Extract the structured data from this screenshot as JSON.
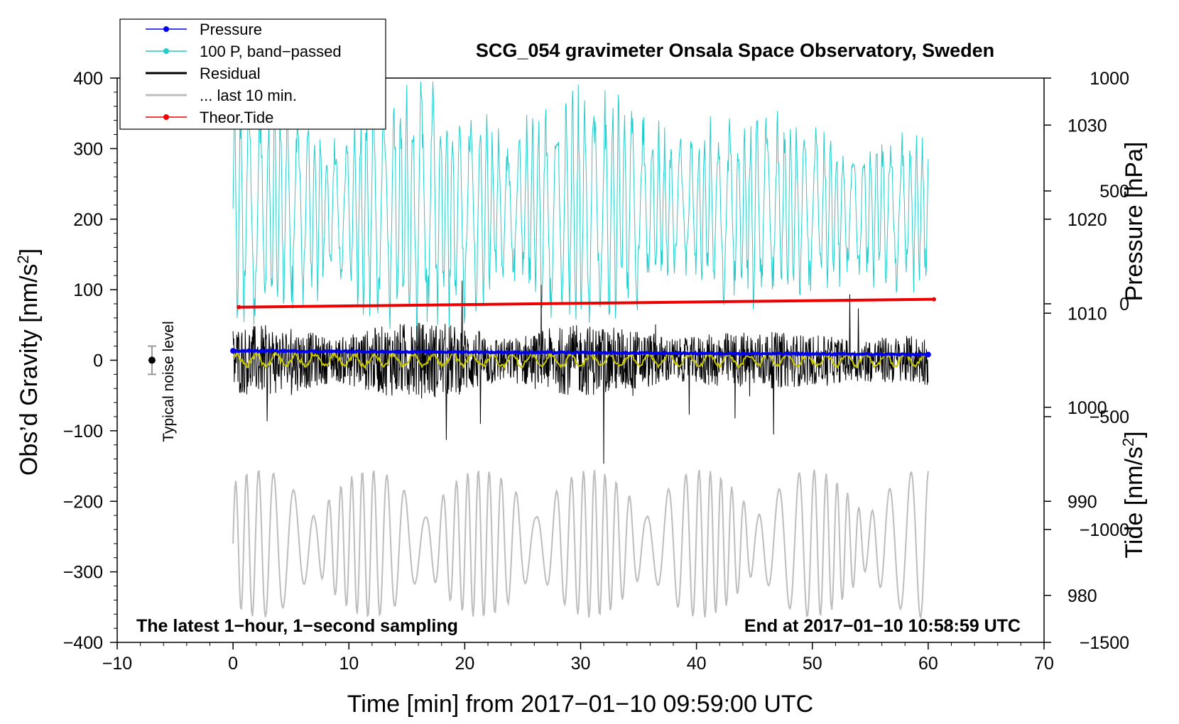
{
  "chart_data": {
    "type": "line",
    "title": "SCG_054 gravimeter Onsala Space Observatory, Sweden",
    "xlabel": "Time [min] from 2017−01−10 09:59:00 UTC",
    "ylabel_left_main": "Obs’d Gravity [nm/s",
    "ylabel_left_sup": "2",
    "ylabel_left_end": "]",
    "ylabel_right_pressure": "Pressure [hPa]",
    "ylabel_right_tide_main": "Tide [nm/s",
    "ylabel_right_tide_sup": "2",
    "ylabel_right_tide_end": "]",
    "xlim": [
      -10,
      70
    ],
    "ylim_gravity": [
      -400,
      400
    ],
    "ylim_pressure_axis": [
      975,
      1035
    ],
    "ylim_tide_axis": [
      -1500,
      1000
    ],
    "x_ticks": [
      -10,
      0,
      10,
      20,
      30,
      40,
      50,
      60,
      70
    ],
    "x_tick_labels": [
      "−10",
      "0",
      "10",
      "20",
      "30",
      "40",
      "50",
      "60",
      "70"
    ],
    "y_ticks_gravity": [
      400,
      300,
      200,
      100,
      0,
      -100,
      -200,
      -300,
      -400
    ],
    "y_tick_labels_gravity": [
      "400",
      "300",
      "200",
      "100",
      "0",
      "−100",
      "−200",
      "−300",
      "−400"
    ],
    "y_ticks_pressure": [
      1030,
      1020,
      1010,
      1000,
      990,
      980
    ],
    "y_tick_labels_pressure": [
      "1030",
      "1020",
      "1010",
      "1000",
      "990",
      "980"
    ],
    "y_ticks_tide": [
      1000,
      500,
      0,
      -500,
      -1000,
      -1500
    ],
    "y_tick_labels_tide": [
      "1000",
      "500",
      "0",
      "−500",
      "−1000",
      "−1500"
    ],
    "annotation_left": "The latest 1−hour, 1−second sampling",
    "annotation_right": "End at 2017−01−10 10:58:59 UTC",
    "noise_label": "Typical noise level",
    "noise_marker": {
      "x": -7,
      "y": 0,
      "error": 20
    },
    "legend": [
      {
        "label": "Pressure",
        "color": "#0000ee",
        "marker": true
      },
      {
        "label": "100 P, band−passed",
        "color": "#22cccc",
        "marker": true
      },
      {
        "label": "Residual",
        "color": "#000000",
        "marker": false
      },
      {
        "label": "... last 10 min.",
        "color": "#bdbdbd",
        "marker": false
      },
      {
        "label": "Theor.Tide",
        "color": "#ee0000",
        "marker": true
      }
    ],
    "series": [
      {
        "name": "Pressure",
        "color": "#0000ee",
        "axis": "pressure",
        "x_start": 0,
        "x_end": 60,
        "y_start": 1006.0,
        "y_end": 1005.6
      },
      {
        "name": "100 P, band−passed",
        "color": "#22cccc",
        "axis": "gravity",
        "x_start": 0,
        "x_end": 60,
        "center": 215,
        "amplitude_max": 180
      },
      {
        "name": "Residual",
        "color": "#000000",
        "axis": "gravity",
        "x_start": 0,
        "x_end": 60,
        "center": 0,
        "amplitude_max": 160
      },
      {
        "name": "Smoothed residual",
        "color": "#c8c800",
        "axis": "gravity",
        "x_start": 0,
        "x_end": 60,
        "center": 0,
        "amplitude_max": 22
      },
      {
        "name": "... last 10 min.",
        "color": "#bdbdbd",
        "axis": "gravity",
        "x_start": 0,
        "x_end": 60,
        "center": -260,
        "amplitude_max": 105
      },
      {
        "name": "Theor.Tide",
        "color": "#ee0000",
        "axis": "tide",
        "x_start": 0.5,
        "x_end": 60.5,
        "y_start": -15,
        "y_end": 20
      }
    ]
  }
}
